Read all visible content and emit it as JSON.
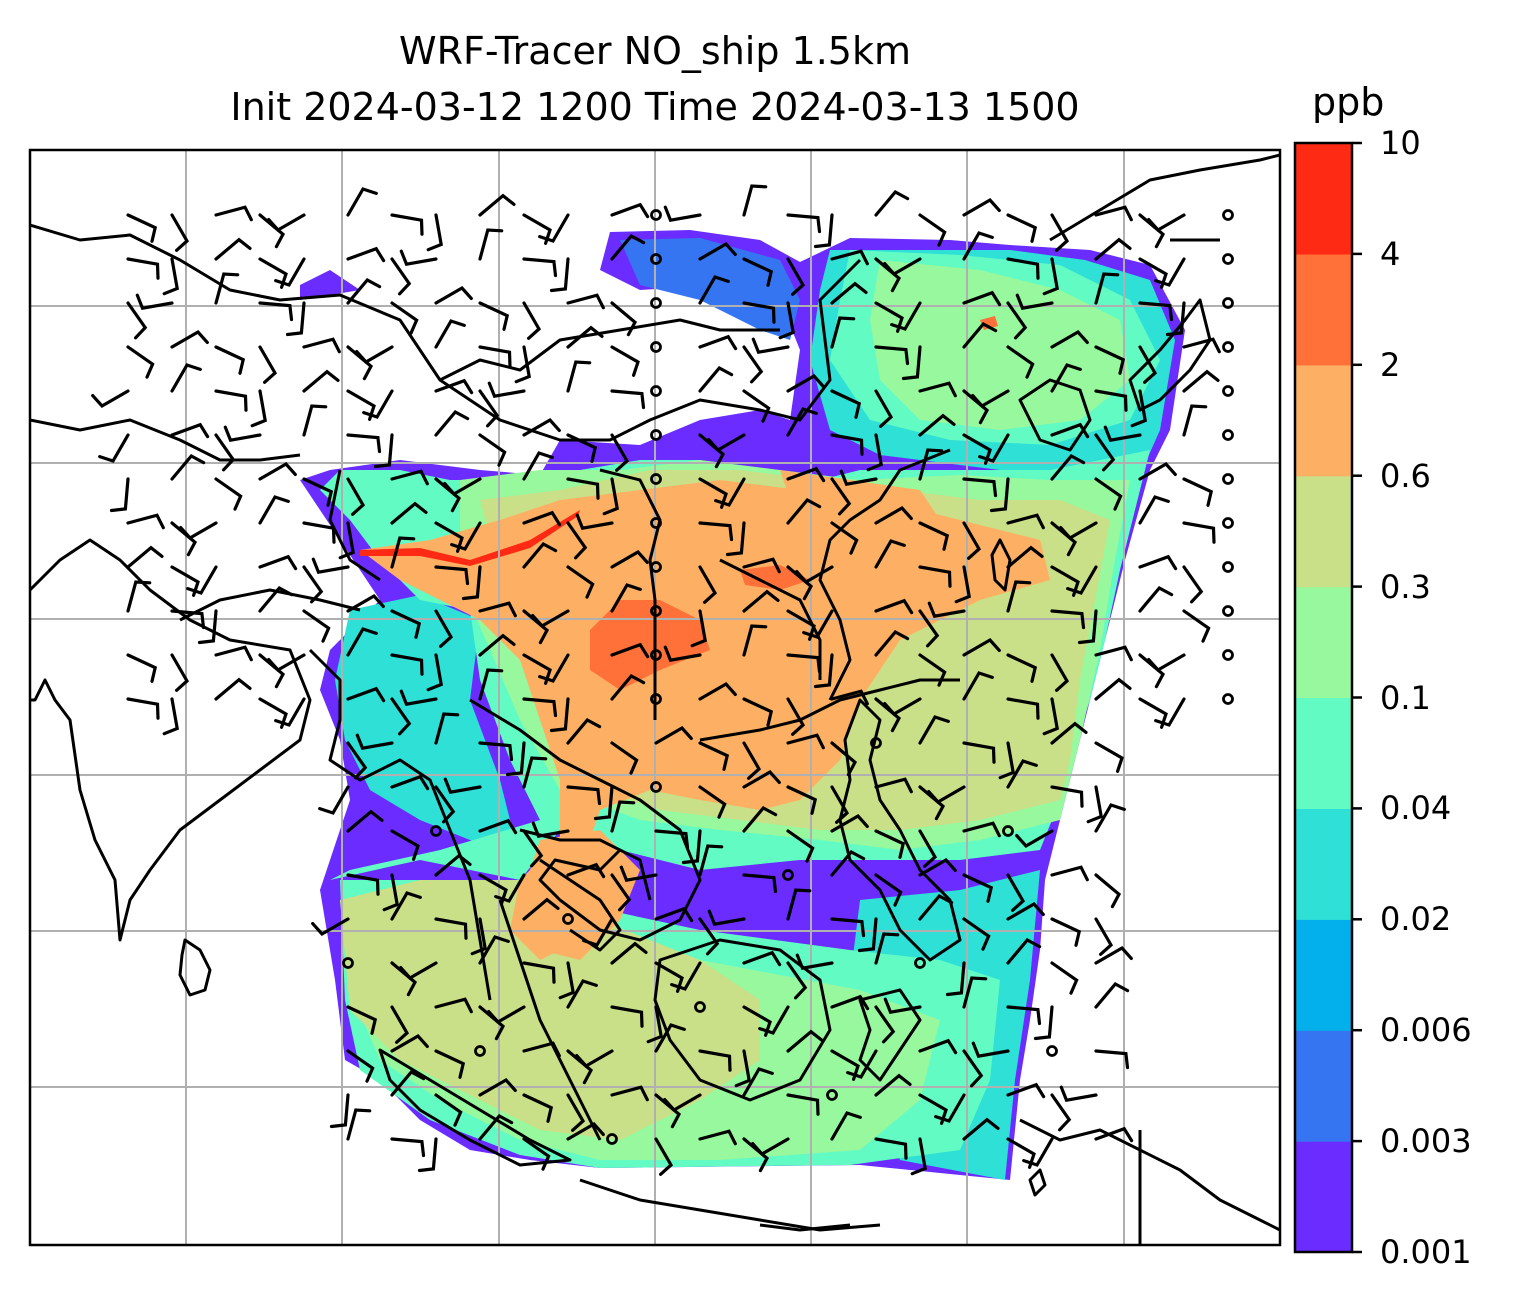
{
  "title": {
    "line1": "WRF-Tracer NO_ship 1.5km",
    "line2": "Init 2024-03-12 1200 Time 2024-03-13 1500"
  },
  "colorbar": {
    "unit": "ppb",
    "levels": [
      "0.001",
      "0.003",
      "0.006",
      "0.02",
      "0.04",
      "0.1",
      "0.3",
      "0.6",
      "2",
      "4",
      "10"
    ],
    "colors": [
      "#6a2cff",
      "#3575f2",
      "#03b0eb",
      "#2ee0d5",
      "#62fbc4",
      "#97f89d",
      "#c9df88",
      "#fdb063",
      "#ff7139",
      "#ff2a14"
    ]
  },
  "map": {
    "gridline_color": "#b0b0b0",
    "coastline_color": "#000000"
  }
}
